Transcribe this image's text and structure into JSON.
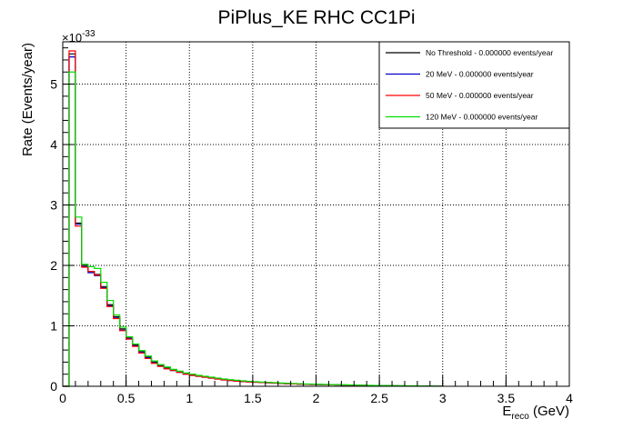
{
  "chart_data": {
    "type": "line",
    "title": "PiPlus_KE RHC CC1Pi",
    "xlabel_main": "E",
    "xlabel_sub": "reco",
    "xlabel_unit": " (GeV)",
    "ylabel": "Rate (Events/year)",
    "y_multiplier_base": "×10",
    "y_multiplier_exp": "-33",
    "xlim": [
      0,
      4
    ],
    "ylim": [
      0,
      5.7
    ],
    "x_ticks": [
      0,
      0.5,
      1,
      1.5,
      2,
      2.5,
      3,
      3.5,
      4
    ],
    "x_tick_labels": [
      "0",
      "0.5",
      "1",
      "1.5",
      "2",
      "2.5",
      "3",
      "3.5",
      "4"
    ],
    "y_ticks": [
      0,
      1,
      2,
      3,
      4,
      5
    ],
    "y_tick_labels": [
      "0",
      "1",
      "2",
      "3",
      "4",
      "5"
    ],
    "grid": true,
    "legend_position": "top-right",
    "bin_width": 0.05,
    "series": [
      {
        "name": "No Threshold - 0.000000 events/year",
        "color": "#000000",
        "values": [
          0,
          5.5,
          2.7,
          2.0,
          1.9,
          1.85,
          1.65,
          1.35,
          1.15,
          0.95,
          0.8,
          0.68,
          0.57,
          0.48,
          0.4,
          0.34,
          0.3,
          0.27,
          0.24,
          0.21,
          0.19,
          0.17,
          0.155,
          0.14,
          0.125,
          0.11,
          0.1,
          0.09,
          0.08,
          0.075,
          0.07,
          0.065,
          0.06,
          0.055,
          0.05,
          0.045,
          0.04,
          0.038,
          0.035,
          0.032,
          0.03,
          0.028,
          0.026,
          0.024,
          0.022,
          0.02,
          0.018,
          0.016,
          0.014,
          0.012,
          0.01,
          0.009,
          0.008,
          0.007,
          0.006,
          0.005,
          0.004,
          0.003,
          0.002,
          0.001
        ]
      },
      {
        "name": "20 MeV - 0.000000 events/year",
        "color": "#0000cc",
        "values": [
          0,
          5.45,
          2.68,
          1.98,
          1.88,
          1.83,
          1.63,
          1.33,
          1.13,
          0.93,
          0.79,
          0.67,
          0.56,
          0.47,
          0.39,
          0.33,
          0.29,
          0.26,
          0.23,
          0.2,
          0.18,
          0.165,
          0.15,
          0.135,
          0.12,
          0.105,
          0.095,
          0.085,
          0.078,
          0.072,
          0.068,
          0.062,
          0.058,
          0.053,
          0.048,
          0.043,
          0.039,
          0.036,
          0.033,
          0.03,
          0.028,
          0.026,
          0.024,
          0.022,
          0.02,
          0.018,
          0.016,
          0.015,
          0.013,
          0.011,
          0.009,
          0.008,
          0.007,
          0.006,
          0.005,
          0.004,
          0.003,
          0.002,
          0.001,
          0.001
        ]
      },
      {
        "name": "50 MeV - 0.000000 events/year",
        "color": "#ff0000",
        "values": [
          0,
          5.55,
          2.65,
          1.97,
          1.9,
          1.84,
          1.62,
          1.32,
          1.12,
          0.92,
          0.78,
          0.66,
          0.55,
          0.46,
          0.38,
          0.33,
          0.29,
          0.26,
          0.23,
          0.2,
          0.18,
          0.165,
          0.15,
          0.135,
          0.12,
          0.105,
          0.095,
          0.085,
          0.078,
          0.072,
          0.068,
          0.062,
          0.058,
          0.053,
          0.048,
          0.043,
          0.039,
          0.036,
          0.033,
          0.03,
          0.028,
          0.026,
          0.024,
          0.022,
          0.02,
          0.018,
          0.016,
          0.015,
          0.013,
          0.011,
          0.009,
          0.008,
          0.007,
          0.006,
          0.005,
          0.004,
          0.003,
          0.002,
          0.001,
          0.001
        ]
      },
      {
        "name": "120 MeV - 0.000000 events/year",
        "color": "#00e000",
        "values": [
          0,
          5.2,
          2.8,
          2.02,
          1.98,
          1.95,
          1.72,
          1.42,
          1.18,
          0.98,
          0.82,
          0.7,
          0.59,
          0.5,
          0.42,
          0.36,
          0.32,
          0.28,
          0.25,
          0.22,
          0.2,
          0.18,
          0.165,
          0.15,
          0.135,
          0.12,
          0.11,
          0.1,
          0.09,
          0.082,
          0.076,
          0.07,
          0.065,
          0.06,
          0.055,
          0.05,
          0.046,
          0.042,
          0.038,
          0.035,
          0.032,
          0.03,
          0.028,
          0.026,
          0.024,
          0.022,
          0.02,
          0.018,
          0.016,
          0.014,
          0.012,
          0.011,
          0.01,
          0.009,
          0.008,
          0.007,
          0.006,
          0.005,
          0.004,
          0.003
        ]
      }
    ]
  }
}
